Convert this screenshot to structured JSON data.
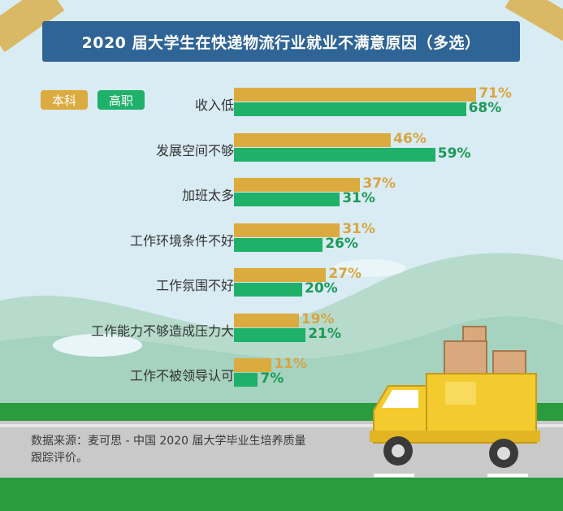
{
  "title": "2020 届大学生在快递物流行业就业不满意原因（多选）",
  "colors": {
    "undergrad": "#dcab3f",
    "vocational": "#1fb169",
    "undergrad_text": "#d7a542",
    "vocational_text": "#1a9a55",
    "banner": "#2f6496"
  },
  "legend": [
    {
      "label": "本科"
    },
    {
      "label": "高职"
    }
  ],
  "footer": {
    "line1": "数据来源：麦可思 - 中国 2020 届大学毕业生培养质量",
    "line2": "跟踪评价。"
  },
  "chart_data": {
    "type": "bar",
    "orientation": "horizontal",
    "title": "2020 届大学生在快递物流行业就业不满意原因（多选）",
    "categories": [
      "收入低",
      "发展空间不够",
      "加班太多",
      "工作环境条件不好",
      "工作氛围不好",
      "工作能力不够造成压力大",
      "工作不被领导认可"
    ],
    "series": [
      {
        "name": "本科",
        "values": [
          71,
          46,
          37,
          31,
          27,
          19,
          11
        ],
        "labels": [
          "71%",
          "46%",
          "37%",
          "31%",
          "27%",
          "19%",
          "11%"
        ]
      },
      {
        "name": "高职",
        "values": [
          68,
          59,
          31,
          26,
          20,
          21,
          7
        ],
        "labels": [
          "68%",
          "59%",
          "31%",
          "26%",
          "20%",
          "21%",
          "7%"
        ]
      }
    ],
    "unit": "%",
    "legend_position": "top-left",
    "grid": false
  }
}
